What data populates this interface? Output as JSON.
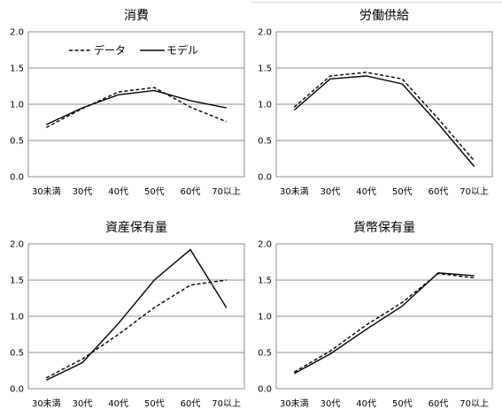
{
  "legend": {
    "data_label": "データ",
    "model_label": "モデル"
  },
  "chart_data": [
    {
      "type": "line",
      "title": "消費",
      "categories": [
        "30未満",
        "30代",
        "40代",
        "50代",
        "60代",
        "70以上"
      ],
      "ylim": [
        0,
        2.0
      ],
      "yticks": [
        "0.0",
        "0.5",
        "1.0",
        "1.5",
        "2.0"
      ],
      "grid": true,
      "legend_position": "top-left",
      "series": [
        {
          "name": "データ",
          "style": "dashed",
          "values": [
            0.68,
            0.94,
            1.17,
            1.23,
            0.96,
            0.76
          ]
        },
        {
          "name": "モデル",
          "style": "solid",
          "values": [
            0.72,
            0.95,
            1.13,
            1.19,
            1.05,
            0.95
          ]
        }
      ]
    },
    {
      "type": "line",
      "title": "労働供給",
      "categories": [
        "30未満",
        "30代",
        "40代",
        "50代",
        "60代",
        "70以上"
      ],
      "ylim": [
        0,
        2.0
      ],
      "yticks": [
        "0.0",
        "0.5",
        "1.0",
        "1.5",
        "2.0"
      ],
      "grid": true,
      "series": [
        {
          "name": "データ",
          "style": "dashed",
          "values": [
            0.96,
            1.39,
            1.44,
            1.35,
            0.8,
            0.22
          ]
        },
        {
          "name": "モデル",
          "style": "solid",
          "values": [
            0.92,
            1.35,
            1.39,
            1.28,
            0.73,
            0.14
          ]
        }
      ]
    },
    {
      "type": "line",
      "title": "資産保有量",
      "categories": [
        "30未満",
        "30代",
        "40代",
        "50代",
        "60代",
        "70以上"
      ],
      "ylim": [
        0,
        2.0
      ],
      "yticks": [
        "0.0",
        "0.5",
        "1.0",
        "1.5",
        "2.0"
      ],
      "grid": true,
      "series": [
        {
          "name": "データ",
          "style": "dashed",
          "values": [
            0.15,
            0.41,
            0.75,
            1.12,
            1.43,
            1.5
          ]
        },
        {
          "name": "モデル",
          "style": "solid",
          "values": [
            0.12,
            0.36,
            0.9,
            1.5,
            1.92,
            1.12
          ]
        }
      ]
    },
    {
      "type": "line",
      "title": "貨幣保有量",
      "categories": [
        "30未満",
        "30代",
        "40代",
        "50代",
        "60代",
        "70以上"
      ],
      "ylim": [
        0,
        2.0
      ],
      "yticks": [
        "0.0",
        "0.5",
        "1.0",
        "1.5",
        "2.0"
      ],
      "grid": true,
      "series": [
        {
          "name": "データ",
          "style": "dashed",
          "values": [
            0.23,
            0.52,
            0.88,
            1.19,
            1.59,
            1.53
          ]
        },
        {
          "name": "モデル",
          "style": "solid",
          "values": [
            0.21,
            0.48,
            0.82,
            1.14,
            1.6,
            1.56
          ]
        }
      ]
    }
  ]
}
